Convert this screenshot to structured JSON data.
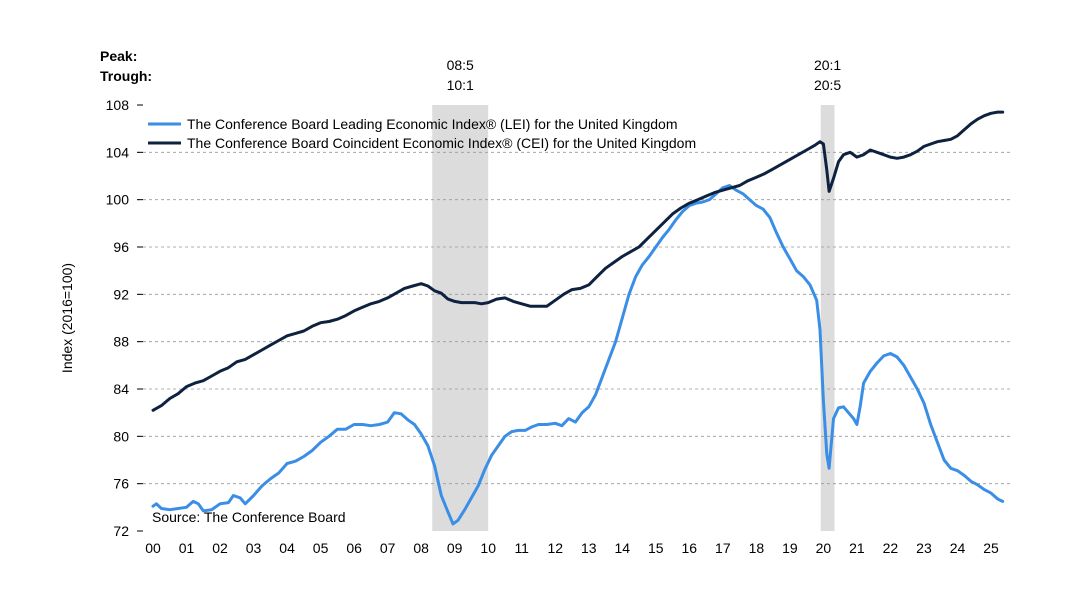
{
  "chart_data": {
    "type": "line",
    "ylabel": "Index (2016=100)",
    "ylim": [
      72,
      108
    ],
    "yticks": [
      72,
      76,
      80,
      84,
      88,
      92,
      96,
      100,
      104,
      108
    ],
    "xlim": [
      2000.0,
      2025.5
    ],
    "xticks": [
      {
        "label": "00",
        "x": 2000.0
      },
      {
        "label": "01",
        "x": 2001.0
      },
      {
        "label": "02",
        "x": 2002.0
      },
      {
        "label": "03",
        "x": 2003.0
      },
      {
        "label": "04",
        "x": 2004.0
      },
      {
        "label": "05",
        "x": 2005.0
      },
      {
        "label": "06",
        "x": 2006.0
      },
      {
        "label": "07",
        "x": 2007.0
      },
      {
        "label": "08",
        "x": 2008.0
      },
      {
        "label": "09",
        "x": 2009.0
      },
      {
        "label": "10",
        "x": 2010.0
      },
      {
        "label": "11",
        "x": 2011.0
      },
      {
        "label": "12",
        "x": 2012.0
      },
      {
        "label": "13",
        "x": 2013.0
      },
      {
        "label": "14",
        "x": 2014.0
      },
      {
        "label": "15",
        "x": 2015.0
      },
      {
        "label": "16",
        "x": 2016.0
      },
      {
        "label": "17",
        "x": 2017.0
      },
      {
        "label": "18",
        "x": 2018.0
      },
      {
        "label": "19",
        "x": 2019.0
      },
      {
        "label": "20",
        "x": 2020.0
      },
      {
        "label": "21",
        "x": 2021.0
      },
      {
        "label": "22",
        "x": 2022.0
      },
      {
        "label": "23",
        "x": 2023.0
      },
      {
        "label": "24",
        "x": 2024.0
      },
      {
        "label": "25",
        "x": 2025.0
      }
    ],
    "grid": true,
    "legend_position": "top-left",
    "peak_label": "Peak:",
    "trough_label": "Trough:",
    "recessions": [
      {
        "start": 2008.33,
        "end": 2010.0,
        "peak": "08:5",
        "trough": "10:1"
      },
      {
        "start": 2019.92,
        "end": 2020.33,
        "peak": "20:1",
        "trough": "20:5"
      }
    ],
    "recession_color": "#dcdcdc",
    "source": "Source: The Conference Board",
    "series": [
      {
        "name": "The Conference Board Leading Economic Index® (LEI) for the United Kingdom",
        "color": "#3a8ee6",
        "points": [
          [
            2000.0,
            74.1
          ],
          [
            2000.1,
            74.3
          ],
          [
            2000.25,
            73.9
          ],
          [
            2000.5,
            73.8
          ],
          [
            2000.75,
            73.9
          ],
          [
            2001.0,
            74.0
          ],
          [
            2001.2,
            74.5
          ],
          [
            2001.35,
            74.3
          ],
          [
            2001.5,
            73.7
          ],
          [
            2001.75,
            73.8
          ],
          [
            2002.0,
            74.3
          ],
          [
            2002.25,
            74.4
          ],
          [
            2002.4,
            75.0
          ],
          [
            2002.6,
            74.8
          ],
          [
            2002.75,
            74.3
          ],
          [
            2003.0,
            75.0
          ],
          [
            2003.25,
            75.8
          ],
          [
            2003.5,
            76.4
          ],
          [
            2003.75,
            76.9
          ],
          [
            2004.0,
            77.7
          ],
          [
            2004.25,
            77.9
          ],
          [
            2004.5,
            78.3
          ],
          [
            2004.75,
            78.8
          ],
          [
            2005.0,
            79.5
          ],
          [
            2005.25,
            80.0
          ],
          [
            2005.5,
            80.6
          ],
          [
            2005.75,
            80.6
          ],
          [
            2006.0,
            81.0
          ],
          [
            2006.25,
            81.0
          ],
          [
            2006.5,
            80.9
          ],
          [
            2006.75,
            81.0
          ],
          [
            2007.0,
            81.2
          ],
          [
            2007.2,
            82.0
          ],
          [
            2007.4,
            81.9
          ],
          [
            2007.6,
            81.4
          ],
          [
            2007.8,
            81.0
          ],
          [
            2008.0,
            80.2
          ],
          [
            2008.2,
            79.2
          ],
          [
            2008.4,
            77.5
          ],
          [
            2008.6,
            75.0
          ],
          [
            2008.8,
            73.6
          ],
          [
            2008.95,
            72.6
          ],
          [
            2009.1,
            72.9
          ],
          [
            2009.3,
            73.8
          ],
          [
            2009.5,
            74.8
          ],
          [
            2009.7,
            75.8
          ],
          [
            2009.9,
            77.2
          ],
          [
            2010.1,
            78.4
          ],
          [
            2010.3,
            79.2
          ],
          [
            2010.5,
            80.0
          ],
          [
            2010.7,
            80.4
          ],
          [
            2010.9,
            80.5
          ],
          [
            2011.1,
            80.5
          ],
          [
            2011.3,
            80.8
          ],
          [
            2011.5,
            81.0
          ],
          [
            2011.75,
            81.0
          ],
          [
            2012.0,
            81.1
          ],
          [
            2012.2,
            80.9
          ],
          [
            2012.4,
            81.5
          ],
          [
            2012.6,
            81.2
          ],
          [
            2012.8,
            82.0
          ],
          [
            2013.0,
            82.5
          ],
          [
            2013.2,
            83.5
          ],
          [
            2013.4,
            85.0
          ],
          [
            2013.6,
            86.5
          ],
          [
            2013.8,
            88.0
          ],
          [
            2014.0,
            90.0
          ],
          [
            2014.2,
            92.0
          ],
          [
            2014.4,
            93.5
          ],
          [
            2014.6,
            94.5
          ],
          [
            2014.8,
            95.2
          ],
          [
            2015.0,
            96.0
          ],
          [
            2015.2,
            96.8
          ],
          [
            2015.4,
            97.5
          ],
          [
            2015.6,
            98.3
          ],
          [
            2015.8,
            99.0
          ],
          [
            2016.0,
            99.5
          ],
          [
            2016.2,
            99.7
          ],
          [
            2016.4,
            99.8
          ],
          [
            2016.6,
            100.0
          ],
          [
            2016.8,
            100.5
          ],
          [
            2017.0,
            101.0
          ],
          [
            2017.2,
            101.2
          ],
          [
            2017.4,
            100.8
          ],
          [
            2017.6,
            100.5
          ],
          [
            2017.8,
            100.0
          ],
          [
            2018.0,
            99.5
          ],
          [
            2018.2,
            99.2
          ],
          [
            2018.4,
            98.5
          ],
          [
            2018.6,
            97.2
          ],
          [
            2018.8,
            96.0
          ],
          [
            2019.0,
            95.0
          ],
          [
            2019.2,
            94.0
          ],
          [
            2019.4,
            93.5
          ],
          [
            2019.6,
            92.8
          ],
          [
            2019.8,
            91.5
          ],
          [
            2019.9,
            89.0
          ],
          [
            2020.0,
            83.0
          ],
          [
            2020.1,
            78.5
          ],
          [
            2020.17,
            77.3
          ],
          [
            2020.3,
            81.5
          ],
          [
            2020.45,
            82.4
          ],
          [
            2020.6,
            82.5
          ],
          [
            2020.75,
            82.0
          ],
          [
            2020.9,
            81.5
          ],
          [
            2021.0,
            81.0
          ],
          [
            2021.1,
            82.6
          ],
          [
            2021.2,
            84.5
          ],
          [
            2021.4,
            85.5
          ],
          [
            2021.6,
            86.2
          ],
          [
            2021.8,
            86.8
          ],
          [
            2022.0,
            87.0
          ],
          [
            2022.2,
            86.7
          ],
          [
            2022.4,
            86.0
          ],
          [
            2022.6,
            85.0
          ],
          [
            2022.8,
            84.0
          ],
          [
            2023.0,
            82.8
          ],
          [
            2023.2,
            81.0
          ],
          [
            2023.4,
            79.5
          ],
          [
            2023.6,
            78.0
          ],
          [
            2023.8,
            77.3
          ],
          [
            2024.0,
            77.1
          ],
          [
            2024.2,
            76.7
          ],
          [
            2024.4,
            76.2
          ],
          [
            2024.6,
            75.9
          ],
          [
            2024.8,
            75.5
          ],
          [
            2025.0,
            75.2
          ],
          [
            2025.2,
            74.7
          ],
          [
            2025.35,
            74.5
          ]
        ]
      },
      {
        "name": "The Conference Board Coincident Economic Index® (CEI) for the United Kingdom",
        "color": "#0e2240",
        "points": [
          [
            2000.0,
            82.2
          ],
          [
            2000.25,
            82.6
          ],
          [
            2000.5,
            83.2
          ],
          [
            2000.75,
            83.6
          ],
          [
            2001.0,
            84.2
          ],
          [
            2001.25,
            84.5
          ],
          [
            2001.5,
            84.7
          ],
          [
            2001.75,
            85.1
          ],
          [
            2002.0,
            85.5
          ],
          [
            2002.25,
            85.8
          ],
          [
            2002.5,
            86.3
          ],
          [
            2002.75,
            86.5
          ],
          [
            2003.0,
            86.9
          ],
          [
            2003.25,
            87.3
          ],
          [
            2003.5,
            87.7
          ],
          [
            2003.75,
            88.1
          ],
          [
            2004.0,
            88.5
          ],
          [
            2004.25,
            88.7
          ],
          [
            2004.5,
            88.9
          ],
          [
            2004.75,
            89.3
          ],
          [
            2005.0,
            89.6
          ],
          [
            2005.25,
            89.7
          ],
          [
            2005.5,
            89.9
          ],
          [
            2005.75,
            90.2
          ],
          [
            2006.0,
            90.6
          ],
          [
            2006.25,
            90.9
          ],
          [
            2006.5,
            91.2
          ],
          [
            2006.75,
            91.4
          ],
          [
            2007.0,
            91.7
          ],
          [
            2007.25,
            92.1
          ],
          [
            2007.5,
            92.5
          ],
          [
            2007.75,
            92.7
          ],
          [
            2008.0,
            92.9
          ],
          [
            2008.2,
            92.7
          ],
          [
            2008.4,
            92.3
          ],
          [
            2008.6,
            92.1
          ],
          [
            2008.8,
            91.6
          ],
          [
            2009.0,
            91.4
          ],
          [
            2009.2,
            91.3
          ],
          [
            2009.4,
            91.3
          ],
          [
            2009.6,
            91.3
          ],
          [
            2009.8,
            91.2
          ],
          [
            2010.0,
            91.3
          ],
          [
            2010.25,
            91.6
          ],
          [
            2010.5,
            91.7
          ],
          [
            2010.75,
            91.4
          ],
          [
            2011.0,
            91.2
          ],
          [
            2011.25,
            91.0
          ],
          [
            2011.5,
            91.0
          ],
          [
            2011.75,
            91.0
          ],
          [
            2012.0,
            91.5
          ],
          [
            2012.25,
            92.0
          ],
          [
            2012.5,
            92.4
          ],
          [
            2012.75,
            92.5
          ],
          [
            2013.0,
            92.8
          ],
          [
            2013.25,
            93.5
          ],
          [
            2013.5,
            94.2
          ],
          [
            2013.75,
            94.7
          ],
          [
            2014.0,
            95.2
          ],
          [
            2014.25,
            95.6
          ],
          [
            2014.5,
            96.0
          ],
          [
            2014.75,
            96.7
          ],
          [
            2015.0,
            97.4
          ],
          [
            2015.25,
            98.1
          ],
          [
            2015.5,
            98.8
          ],
          [
            2015.75,
            99.3
          ],
          [
            2016.0,
            99.7
          ],
          [
            2016.25,
            100.0
          ],
          [
            2016.5,
            100.3
          ],
          [
            2016.75,
            100.6
          ],
          [
            2017.0,
            100.8
          ],
          [
            2017.25,
            101.0
          ],
          [
            2017.5,
            101.2
          ],
          [
            2017.75,
            101.6
          ],
          [
            2018.0,
            101.9
          ],
          [
            2018.25,
            102.2
          ],
          [
            2018.5,
            102.6
          ],
          [
            2018.75,
            103.0
          ],
          [
            2019.0,
            103.4
          ],
          [
            2019.25,
            103.8
          ],
          [
            2019.5,
            104.2
          ],
          [
            2019.75,
            104.6
          ],
          [
            2019.9,
            104.9
          ],
          [
            2020.0,
            104.7
          ],
          [
            2020.1,
            102.5
          ],
          [
            2020.17,
            100.7
          ],
          [
            2020.3,
            101.8
          ],
          [
            2020.45,
            103.2
          ],
          [
            2020.6,
            103.8
          ],
          [
            2020.8,
            104.0
          ],
          [
            2021.0,
            103.6
          ],
          [
            2021.2,
            103.8
          ],
          [
            2021.4,
            104.2
          ],
          [
            2021.6,
            104.0
          ],
          [
            2021.8,
            103.8
          ],
          [
            2022.0,
            103.6
          ],
          [
            2022.2,
            103.5
          ],
          [
            2022.4,
            103.6
          ],
          [
            2022.6,
            103.8
          ],
          [
            2022.8,
            104.1
          ],
          [
            2023.0,
            104.5
          ],
          [
            2023.2,
            104.7
          ],
          [
            2023.4,
            104.9
          ],
          [
            2023.6,
            105.0
          ],
          [
            2023.8,
            105.1
          ],
          [
            2024.0,
            105.4
          ],
          [
            2024.2,
            105.9
          ],
          [
            2024.4,
            106.4
          ],
          [
            2024.6,
            106.8
          ],
          [
            2024.8,
            107.1
          ],
          [
            2025.0,
            107.3
          ],
          [
            2025.2,
            107.4
          ],
          [
            2025.35,
            107.4
          ]
        ]
      }
    ]
  }
}
